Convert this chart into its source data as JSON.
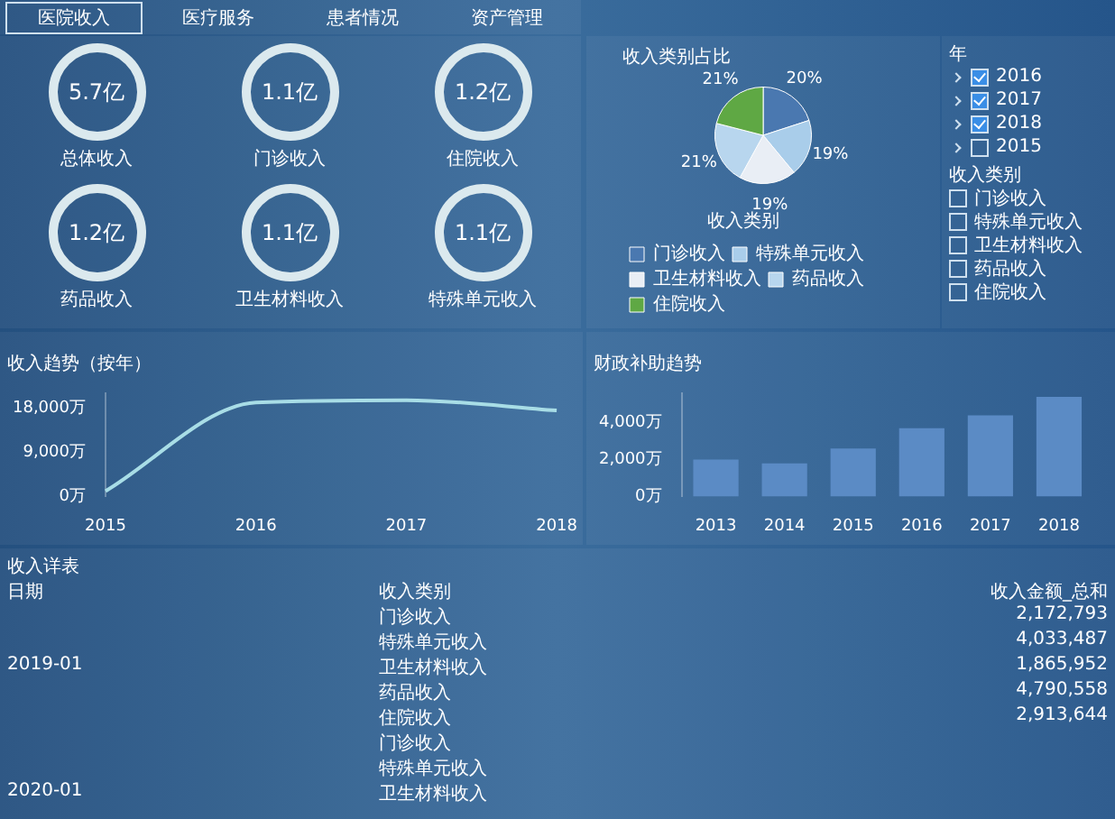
{
  "chart_data": [
    {
      "type": "other",
      "annotations": [
        "医院收入",
        "医疗服务",
        "患者情况",
        "资产管理"
      ]
    },
    {
      "type": "other",
      "categories": [
        "总体收入",
        "门诊收入",
        "住院收入",
        "药品收入",
        "卫生材料收入",
        "特殊单元收入"
      ],
      "value_labels": [
        "5.7亿",
        "1.1亿",
        "1.2亿",
        "1.2亿",
        "1.1亿",
        "1.1亿"
      ]
    },
    {
      "type": "pie",
      "title": "收入类别占比",
      "categories": [
        "门诊收入",
        "特殊单元收入",
        "卫生材料收入",
        "药品收入",
        "住院收入"
      ],
      "values": [
        20,
        19,
        19,
        21,
        21
      ],
      "value_labels": [
        "20%",
        "19%",
        "19%",
        "21%",
        "21%"
      ],
      "colors": [
        "#4a78b0",
        "#a9cdea",
        "#e9eef5",
        "#b8d6ee",
        "#5fa844"
      ],
      "legend": "bottom",
      "legend_title": "收入类别"
    },
    {
      "type": "other",
      "title": "年",
      "categories": [
        "2016",
        "2017",
        "2018",
        "2015"
      ],
      "subtitle": "收入类别",
      "annotations": [
        "门诊收入",
        "特殊单元收入",
        "卫生材料收入",
        "药品收入",
        "住院收入"
      ]
    },
    {
      "type": "line",
      "title": "收入趋势（按年）",
      "categories": [
        "2015",
        "2016",
        "2017",
        "2018"
      ],
      "values": [
        1100,
        19100,
        19600,
        17500
      ],
      "color": "#a8dde6",
      "marker": "none",
      "ylim": [
        0,
        21000
      ],
      "yticks": [
        {
          "value": 0,
          "label": "0万"
        },
        {
          "value": 9000,
          "label": "9,000万"
        },
        {
          "value": 18000,
          "label": "18,000万"
        }
      ]
    },
    {
      "type": "bar",
      "title": "财政补助趋势",
      "categories": [
        "2013",
        "2014",
        "2015",
        "2016",
        "2017",
        "2018"
      ],
      "values": [
        2000,
        1800,
        2600,
        3700,
        4400,
        5400
      ],
      "color": "#5b8bc5",
      "ylim": [
        0,
        5600
      ],
      "yticks": [
        {
          "value": 0,
          "label": "0万"
        },
        {
          "value": 2000,
          "label": "2,000万"
        },
        {
          "value": 4000,
          "label": "4,000万"
        }
      ]
    },
    {
      "type": "other",
      "title": "收入详表",
      "annotations": [
        "日期",
        "收入类别",
        "收入金额_总和",
        "2019-01",
        "2020-01"
      ],
      "categories": [
        "门诊收入",
        "特殊单元收入",
        "卫生材料收入",
        "药品收入",
        "住院收入",
        "门诊收入",
        "特殊单元收入",
        "卫生材料收入"
      ],
      "value_labels": [
        "2,172,793",
        "4,033,487",
        "1,865,952",
        "4,790,558",
        "2,913,644",
        null,
        null,
        null
      ]
    }
  ]
}
